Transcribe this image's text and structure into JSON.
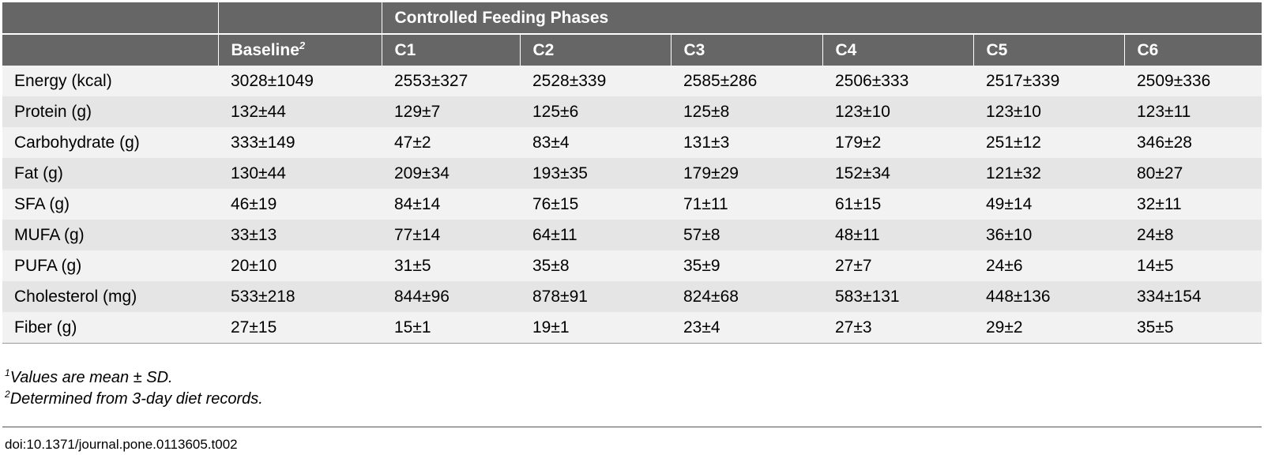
{
  "header": {
    "group_label": "Controlled Feeding Phases",
    "baseline_label": "Baseline",
    "baseline_sup": "2",
    "phases": [
      "C1",
      "C2",
      "C3",
      "C4",
      "C5",
      "C6"
    ]
  },
  "rows": [
    {
      "label": "Energy (kcal)",
      "values": [
        "3028±1049",
        "2553±327",
        "2528±339",
        "2585±286",
        "2506±333",
        "2517±339",
        "2509±336"
      ]
    },
    {
      "label": "Protein (g)",
      "values": [
        "132±44",
        "129±7",
        "125±6",
        "125±8",
        "123±10",
        "123±10",
        "123±11"
      ]
    },
    {
      "label": "Carbohydrate (g)",
      "values": [
        "333±149",
        "47±2",
        "83±4",
        "131±3",
        "179±2",
        "251±12",
        "346±28"
      ]
    },
    {
      "label": "Fat (g)",
      "values": [
        "130±44",
        "209±34",
        "193±35",
        "179±29",
        "152±34",
        "121±32",
        "80±27"
      ]
    },
    {
      "label": "SFA (g)",
      "values": [
        "46±19",
        "84±14",
        "76±15",
        "71±11",
        "61±15",
        "49±14",
        "32±11"
      ]
    },
    {
      "label": "MUFA (g)",
      "values": [
        "33±13",
        "77±14",
        "64±11",
        "57±8",
        "48±11",
        "36±10",
        "24±8"
      ]
    },
    {
      "label": "PUFA (g)",
      "values": [
        "20±10",
        "31±5",
        "35±8",
        "35±9",
        "27±7",
        "24±6",
        "14±5"
      ]
    },
    {
      "label": "Cholesterol (mg)",
      "values": [
        "533±218",
        "844±96",
        "878±91",
        "824±68",
        "583±131",
        "448±136",
        "334±154"
      ]
    },
    {
      "label": "Fiber (g)",
      "values": [
        "27±15",
        "15±1",
        "19±1",
        "23±4",
        "27±3",
        "29±2",
        "35±5"
      ]
    }
  ],
  "footnotes": [
    {
      "mark": "1",
      "text": "Values are mean ± SD."
    },
    {
      "mark": "2",
      "text": "Determined from 3-day diet records."
    }
  ],
  "doi": "doi:10.1371/journal.pone.0113605.t002"
}
